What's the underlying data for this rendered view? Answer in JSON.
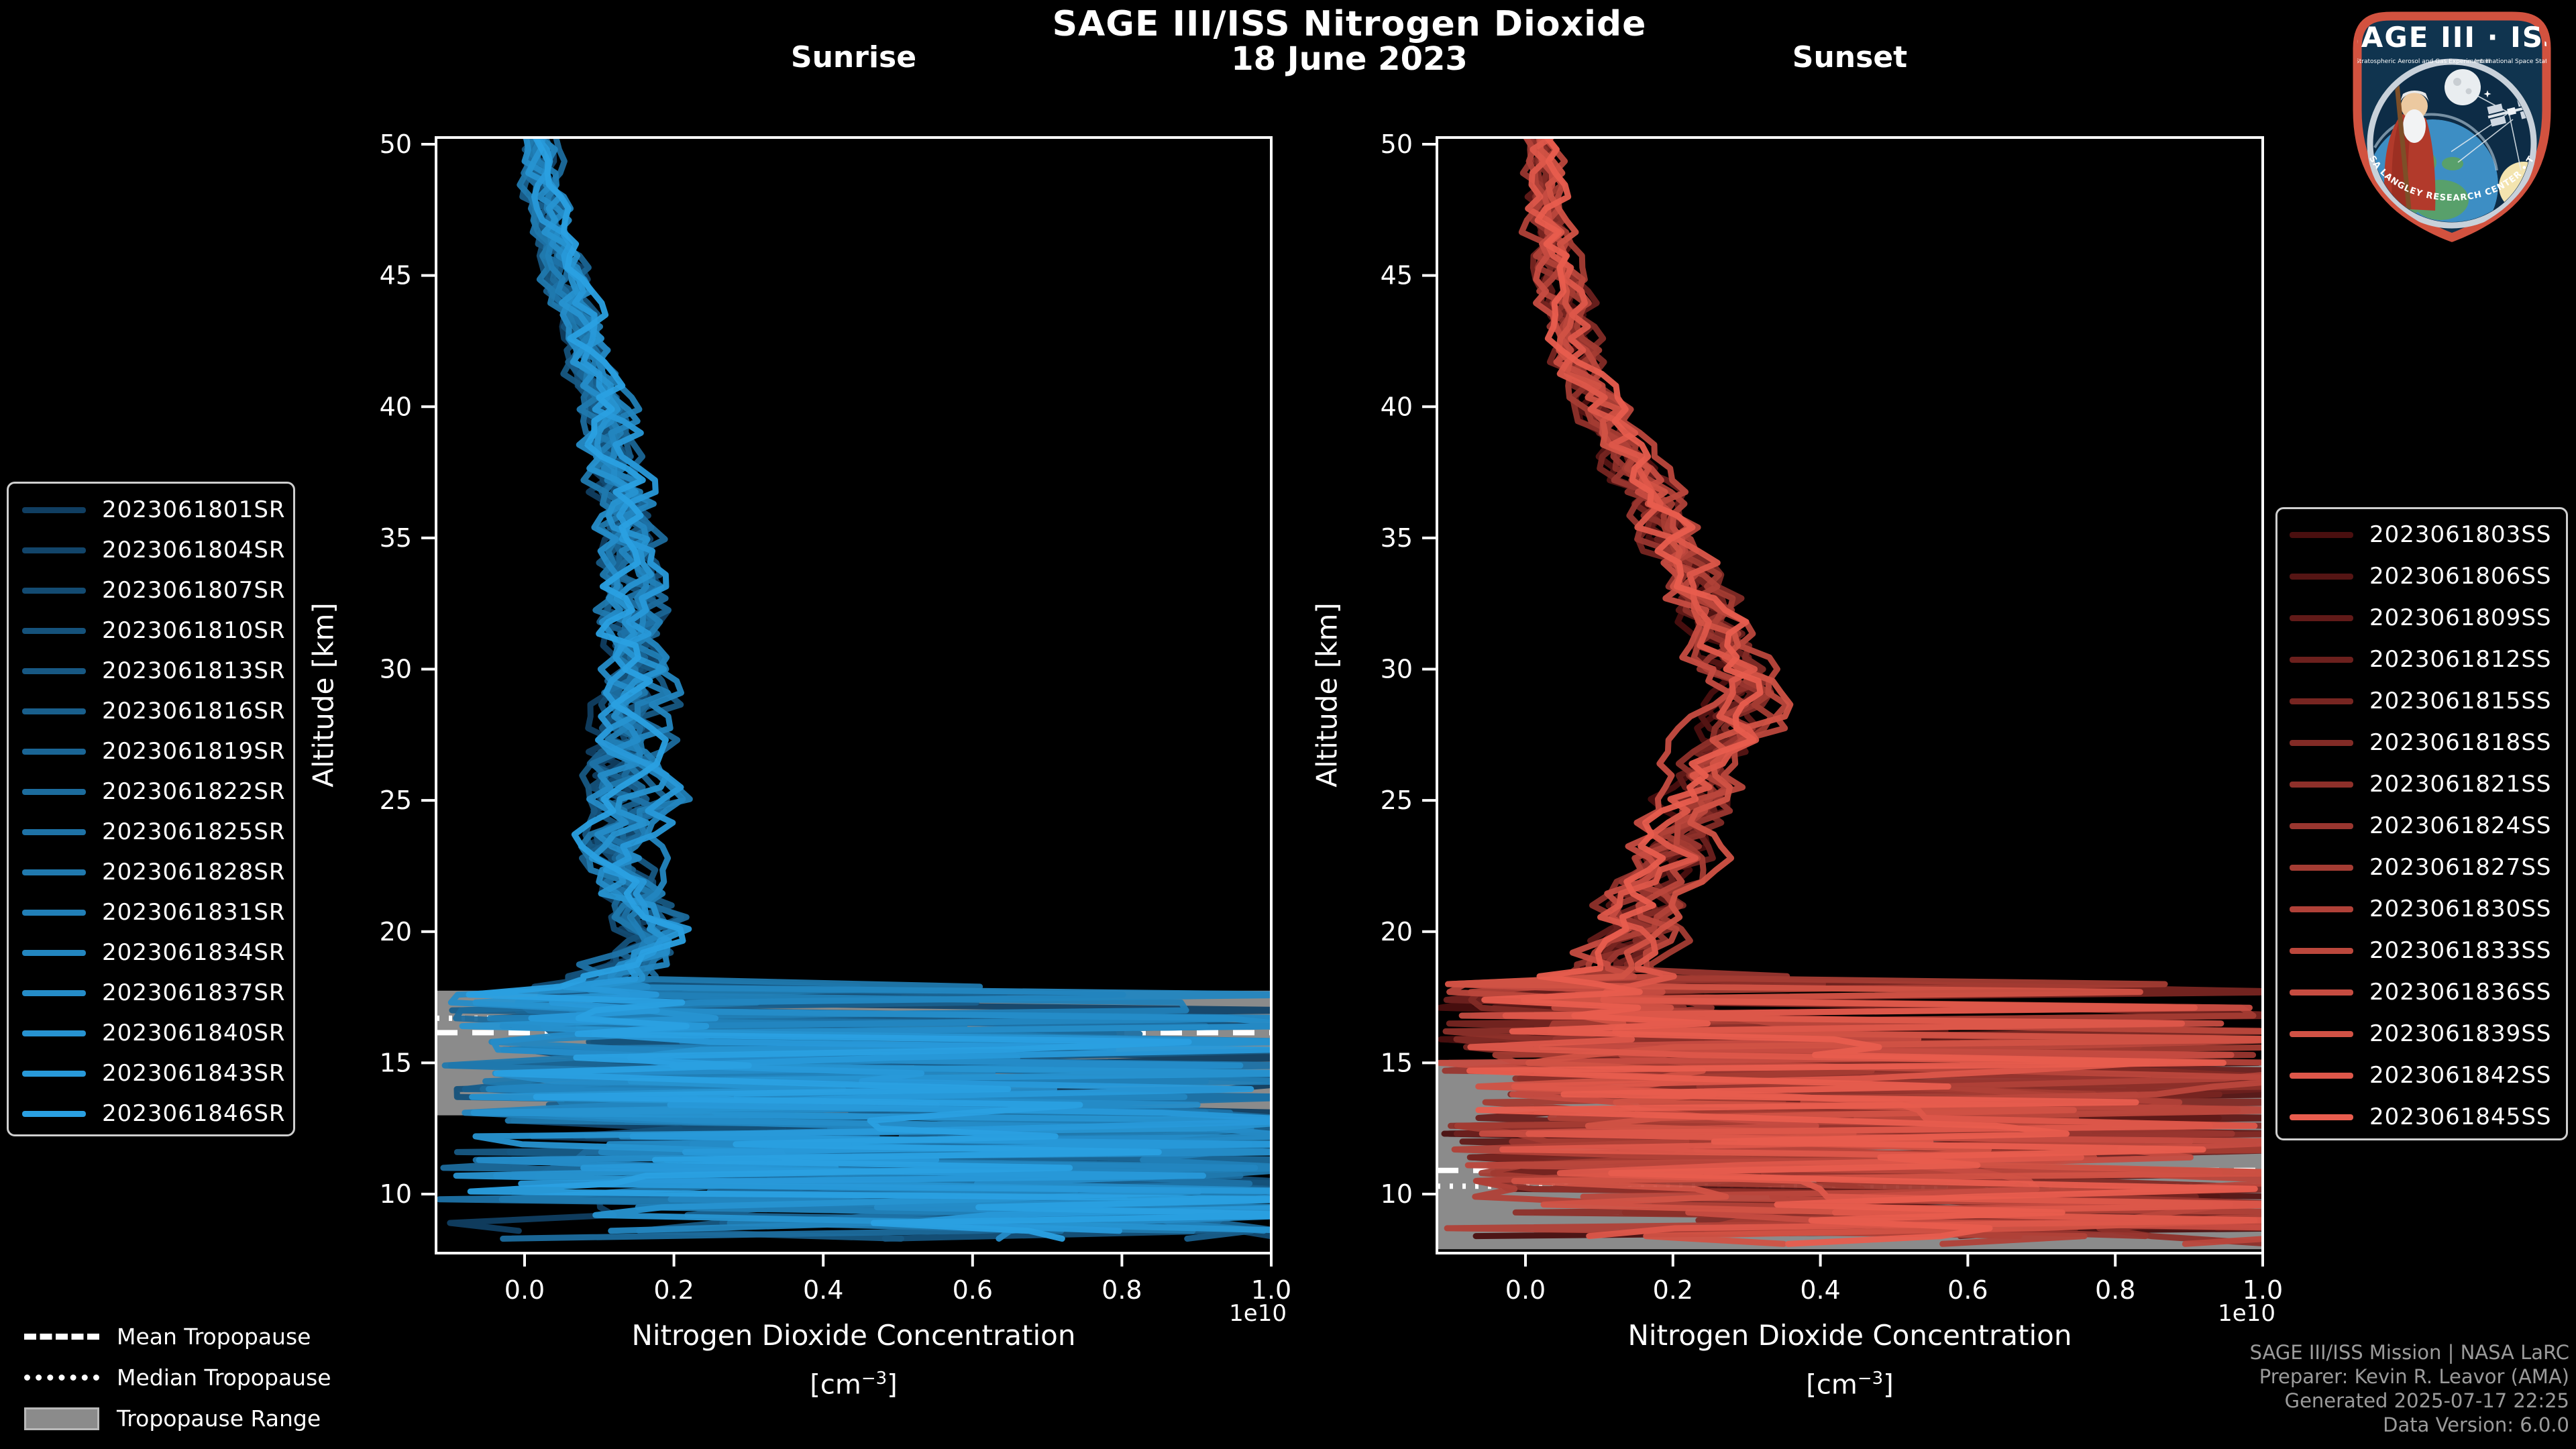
{
  "figure": {
    "title": "SAGE III/ISS Nitrogen Dioxide",
    "date": "18 June 2023"
  },
  "axes": {
    "x": {
      "label": "Nitrogen Dioxide Concentration",
      "unit_pre": "[cm",
      "unit_sup": "−3",
      "unit_post": "]",
      "offset_text": "1e10",
      "tick_labels": [
        "0.0",
        "0.2",
        "0.4",
        "0.6",
        "0.8",
        "1.0"
      ]
    },
    "y": {
      "label": "Altitude [km]",
      "ticks": [
        10,
        15,
        20,
        25,
        30,
        35,
        40,
        45,
        50
      ]
    }
  },
  "chart_data": [
    {
      "type": "line",
      "title": "Sunrise",
      "event_suffix": "SR",
      "x_axis": {
        "range_1e10": [
          -0.118,
          1.0
        ],
        "ticks": [
          0.0,
          0.2,
          0.4,
          0.6,
          0.8,
          1.0
        ],
        "scale_offset": "1e10"
      },
      "y_axis": {
        "label": "Altitude [km]",
        "range_km": [
          7.75,
          50.25
        ],
        "ticks": [
          10,
          15,
          20,
          25,
          30,
          35,
          40,
          45,
          50
        ]
      },
      "series_labels": [
        "2023061801SR",
        "2023061804SR",
        "2023061807SR",
        "2023061810SR",
        "2023061813SR",
        "2023061816SR",
        "2023061819SR",
        "2023061822SR",
        "2023061825SR",
        "2023061828SR",
        "2023061831SR",
        "2023061834SR",
        "2023061837SR",
        "2023061840SR",
        "2023061843SR",
        "2023061846SR"
      ],
      "series_colors": [
        "#103e61",
        "#12456a",
        "#134b72",
        "#15527b",
        "#175883",
        "#195f8c",
        "#1a6595",
        "#1c6c9d",
        "#1e72a6",
        "#2079ae",
        "#217fb7",
        "#2386c0",
        "#258cc8",
        "#2793d1",
        "#2899d9",
        "#2aa0e2"
      ],
      "mean_profile": [
        [
          50,
          0.02
        ],
        [
          47,
          0.04
        ],
        [
          44,
          0.065
        ],
        [
          41,
          0.09
        ],
        [
          38,
          0.12
        ],
        [
          35,
          0.14
        ],
        [
          32,
          0.15
        ],
        [
          29,
          0.15
        ],
        [
          26,
          0.14
        ],
        [
          23,
          0.135
        ],
        [
          21,
          0.15
        ],
        [
          20,
          0.17
        ],
        [
          19,
          0.14
        ],
        [
          18.2,
          0.1
        ]
      ],
      "chaotic_below_km": 18.2,
      "profile_bottom_km": 8.0,
      "tropopause": {
        "mean_km": 16.15,
        "median_km": 16.7,
        "range_km": [
          13.0,
          17.75
        ]
      }
    },
    {
      "type": "line",
      "title": "Sunset",
      "event_suffix": "SS",
      "x_axis": {
        "range_1e10": [
          -0.12,
          1.0
        ],
        "ticks": [
          0.0,
          0.2,
          0.4,
          0.6,
          0.8,
          1.0
        ],
        "scale_offset": "1e10"
      },
      "y_axis": {
        "label": "Altitude [km]",
        "range_km": [
          7.75,
          50.25
        ],
        "ticks": [
          10,
          15,
          20,
          25,
          30,
          35,
          40,
          45,
          50
        ]
      },
      "series_labels": [
        "2023061803SS",
        "2023061806SS",
        "2023061809SS",
        "2023061812SS",
        "2023061815SS",
        "2023061818SS",
        "2023061821SS",
        "2023061824SS",
        "2023061827SS",
        "2023061830SS",
        "2023061833SS",
        "2023061836SS",
        "2023061839SS",
        "2023061842SS",
        "2023061845SS"
      ],
      "series_colors": [
        "#4a0f0f",
        "#551514",
        "#611a18",
        "#6c201d",
        "#772521",
        "#822b26",
        "#8e302a",
        "#99362f",
        "#a43c33",
        "#b04138",
        "#bb473c",
        "#c64c41",
        "#d15245",
        "#dd574a",
        "#e85d4e"
      ],
      "mean_profile": [
        [
          50,
          0.02
        ],
        [
          47,
          0.03
        ],
        [
          45,
          0.045
        ],
        [
          43,
          0.06
        ],
        [
          41,
          0.085
        ],
        [
          39,
          0.12
        ],
        [
          37,
          0.16
        ],
        [
          35,
          0.2
        ],
        [
          33,
          0.235
        ],
        [
          31,
          0.27
        ],
        [
          29.5,
          0.295
        ],
        [
          28,
          0.285
        ],
        [
          26,
          0.25
        ],
        [
          24,
          0.215
        ],
        [
          22,
          0.185
        ],
        [
          20,
          0.155
        ],
        [
          19,
          0.13
        ],
        [
          18.6,
          0.11
        ]
      ],
      "chaotic_below_km": 18.6,
      "profile_bottom_km": 7.95,
      "tropopause": {
        "mean_km": 10.9,
        "median_km": 10.3,
        "range_km": [
          7.9,
          15.1
        ]
      }
    }
  ],
  "tropopause_legend": {
    "items": [
      {
        "label": "Mean Tropopause",
        "style": "dashed"
      },
      {
        "label": "Median Tropopause",
        "style": "dotted"
      },
      {
        "label": "Tropopause Range",
        "style": "band"
      }
    ]
  },
  "attribution": {
    "lines": [
      "SAGE III/ISS Mission | NASA LaRC",
      "Preparer: Kevin R. Leavor (AMA)",
      "Generated 2025-07-17 22:25",
      "Data Version: 6.0.0"
    ]
  },
  "logo": {
    "title": "SAGE III · ISS",
    "subtitle_left": "Stratospheric Aerosol and Gas Experiment III",
    "subtitle_right": "International Space Station",
    "arc_text": "BALL • NASA LANGLEY RESEARCH CENTER • TAS-I • ESA"
  },
  "colors": {
    "background": "#000000",
    "frame": "#ffffff",
    "tropopause_band": "#8b8b8b",
    "attribution_text": "#9b9b9b"
  }
}
